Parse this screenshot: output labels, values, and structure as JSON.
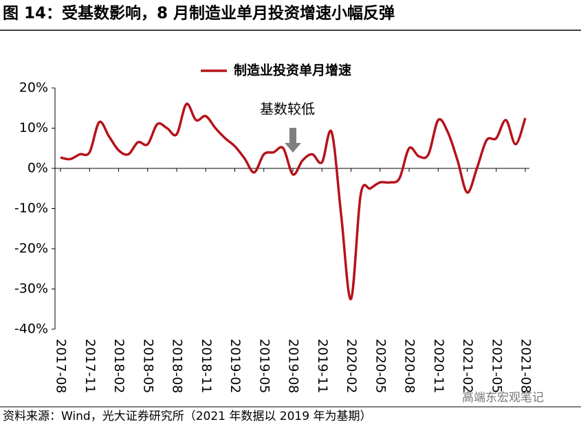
{
  "chart_data": {
    "type": "line",
    "title": "图 14：受基数影响，8 月制造业单月投资增速小幅反弹",
    "source": "资料来源：Wind，光大证券研究所（2021 年数据以 2019 年为基期）",
    "watermark": "高端东宏观笔记",
    "annotation": "基数较低",
    "annotation_category": 24,
    "categories": [
      "2017-08",
      null,
      null,
      "2017-11",
      null,
      null,
      "2018-02",
      null,
      null,
      "2018-05",
      null,
      null,
      "2018-08",
      null,
      null,
      "2018-11",
      null,
      null,
      "2019-02",
      null,
      null,
      "2019-05",
      null,
      null,
      "2019-08",
      null,
      null,
      "2019-11",
      null,
      null,
      "2020-02",
      null,
      null,
      "2020-05",
      null,
      null,
      "2020-08",
      null,
      null,
      "2020-11",
      null,
      null,
      "2021-02",
      null,
      null,
      "2021-05",
      null,
      null,
      "2021-08"
    ],
    "series": [
      {
        "name": "制造业投资单月增速",
        "color": "#b5121b",
        "values": [
          2.7,
          2.3,
          3.5,
          4,
          11.5,
          8,
          4.5,
          3.5,
          6.5,
          6,
          11,
          10,
          8.5,
          16,
          12,
          13,
          10,
          7.5,
          5.5,
          2.5,
          -1,
          3.5,
          4,
          5,
          -1.5,
          2,
          3.5,
          1.5,
          9,
          -12,
          -32.5,
          -6.5,
          -5,
          -3.5,
          -3.5,
          -2.5,
          5,
          3,
          3.5,
          12,
          9,
          2,
          -6,
          0,
          7,
          7.5,
          12,
          6,
          12.5
        ]
      }
    ],
    "ylim": [
      -40,
      20
    ],
    "yticks": [
      {
        "value": -40,
        "label": "-40%"
      },
      {
        "value": -30,
        "label": "-30%"
      },
      {
        "value": -20,
        "label": "-20%"
      },
      {
        "value": -10,
        "label": "-10%"
      },
      {
        "value": 0,
        "label": "0%"
      },
      {
        "value": 10,
        "label": "10%"
      },
      {
        "value": 20,
        "label": "20%"
      }
    ],
    "legend": "top"
  }
}
